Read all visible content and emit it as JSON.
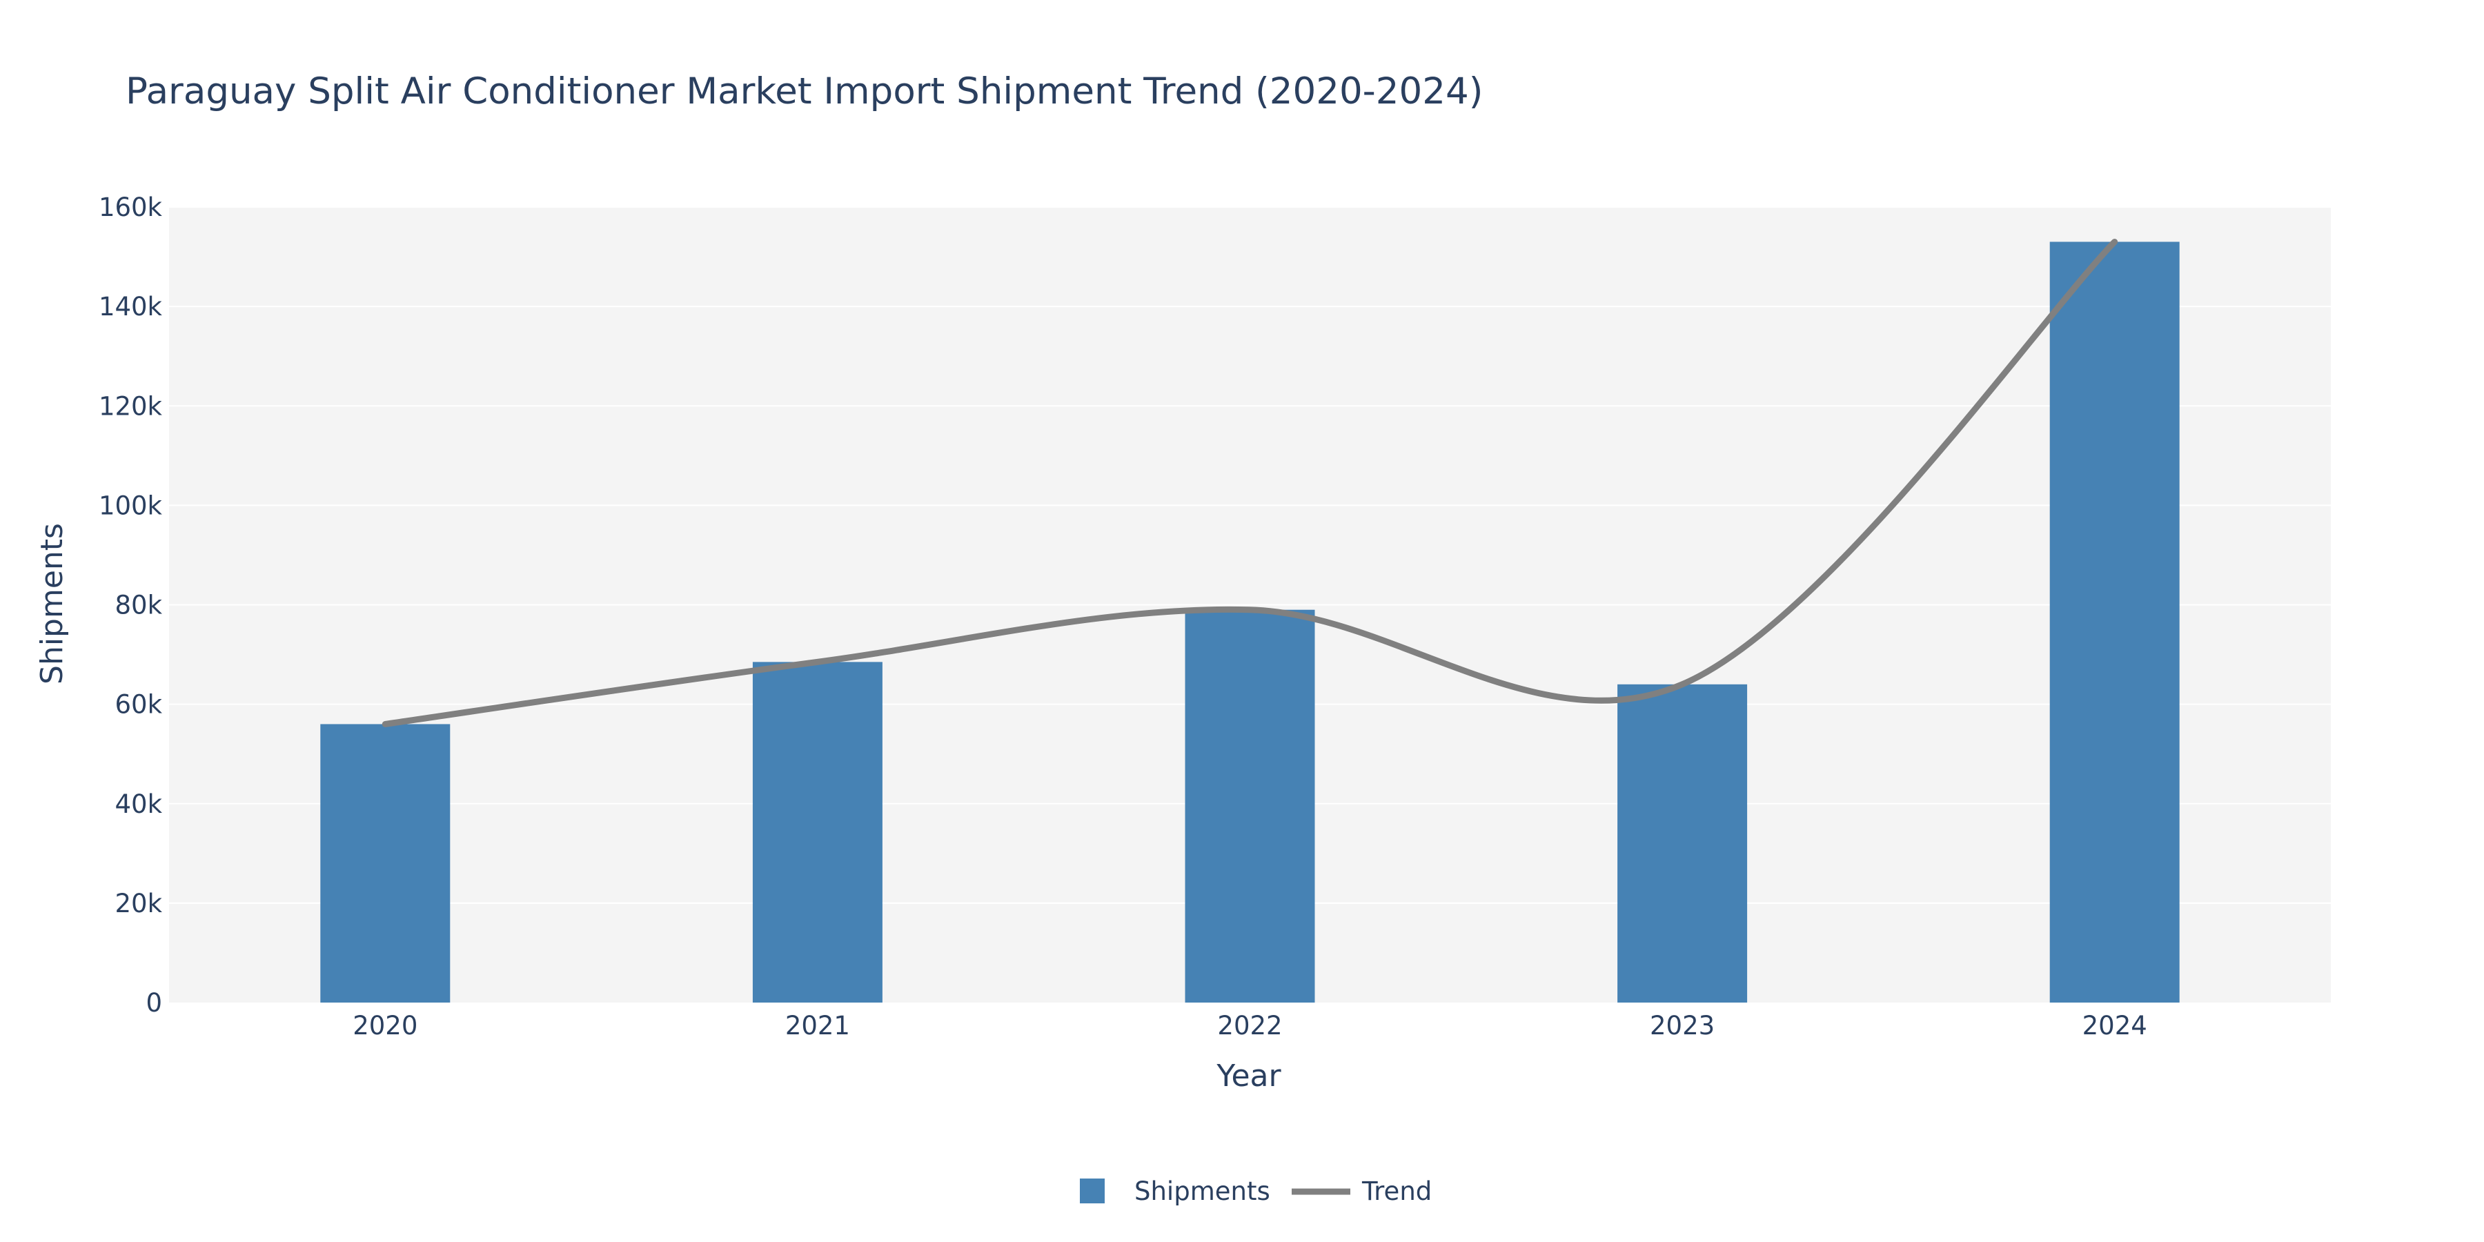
{
  "chart_data": {
    "type": "bar",
    "title": "Paraguay Split Air Conditioner Market Import Shipment Trend (2020-2024)",
    "xlabel": "Year",
    "ylabel": "Shipments",
    "categories": [
      "2020",
      "2021",
      "2022",
      "2023",
      "2024"
    ],
    "series": [
      {
        "name": "Shipments",
        "type": "bar",
        "values": [
          56000,
          68500,
          79000,
          64000,
          153000
        ],
        "color": "#4682b4"
      },
      {
        "name": "Trend",
        "type": "line",
        "smoothing": "spline",
        "values": [
          56000,
          68500,
          79000,
          64000,
          153000
        ],
        "color": "#808080"
      }
    ],
    "ylim": [
      0,
      160000
    ],
    "yticks": [
      0,
      20000,
      40000,
      60000,
      80000,
      100000,
      120000,
      140000,
      160000
    ],
    "ytick_labels": [
      "0",
      "20k",
      "40k",
      "60k",
      "80k",
      "100k",
      "120k",
      "140k",
      "160k"
    ],
    "grid": true,
    "legend_position": "bottom-center",
    "plot_background": "#f4f4f4"
  }
}
